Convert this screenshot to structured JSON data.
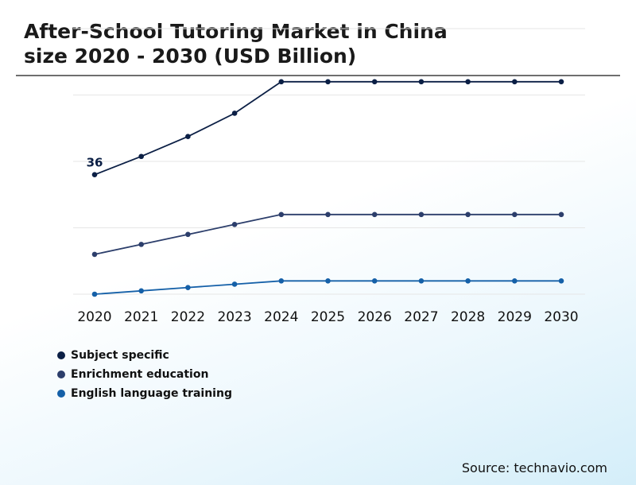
{
  "title": {
    "line1": "After-School Tutoring Market in China",
    "line2": "size 2020 - 2030 (USD Billion)"
  },
  "source": "Source: technavio.com",
  "chart_data": {
    "type": "line",
    "x": [
      "2020",
      "2021",
      "2022",
      "2023",
      "2024",
      "2025",
      "2026",
      "2027",
      "2028",
      "2029",
      "2030"
    ],
    "ylim": [
      0,
      80
    ],
    "grid": true,
    "legend_position": "bottom-left",
    "series": [
      {
        "name": "Subject specific",
        "color": "#0b1f45",
        "values": [
          36,
          41.5,
          47.5,
          54.5,
          64,
          64,
          64,
          64,
          64,
          64,
          64
        ]
      },
      {
        "name": "Enrichment education",
        "color": "#2c3e6b",
        "values": [
          12,
          15,
          18,
          21,
          24,
          24,
          24,
          24,
          24,
          24,
          24
        ]
      },
      {
        "name": "English language training",
        "color": "#1560a8",
        "values": [
          0,
          1,
          2,
          3,
          4,
          4,
          4,
          4,
          4,
          4,
          4
        ]
      }
    ],
    "annotations": [
      {
        "series": 0,
        "index": 0,
        "text": "36"
      }
    ]
  }
}
